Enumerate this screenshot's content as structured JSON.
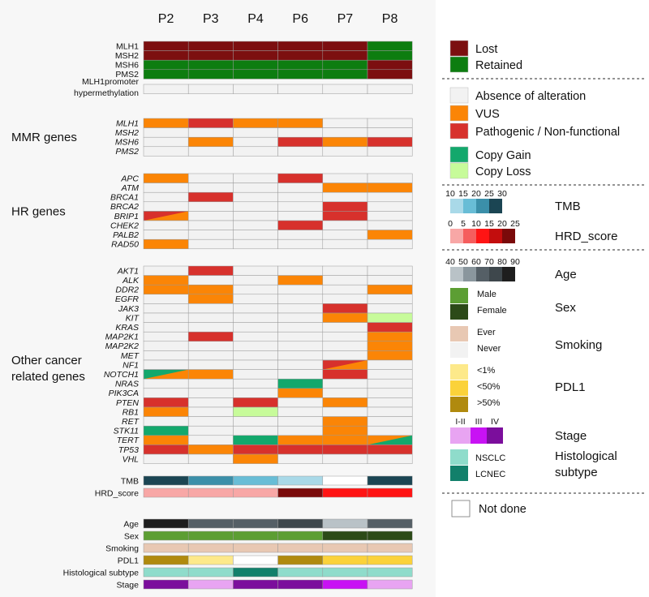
{
  "chart_data": {
    "type": "heatmap",
    "patients": [
      "P2",
      "P3",
      "P4",
      "P6",
      "P7",
      "P8"
    ],
    "sections": [
      {
        "title": "",
        "italic": false,
        "rows": [
          {
            "label": "MLH1",
            "cells": [
              "lost",
              "lost",
              "lost",
              "lost",
              "lost",
              "retained"
            ]
          },
          {
            "label": "MSH2",
            "cells": [
              "lost",
              "lost",
              "lost",
              "lost",
              "lost",
              "retained"
            ]
          },
          {
            "label": "MSH6",
            "cells": [
              "retained",
              "retained",
              "retained",
              "retained",
              "retained",
              "lost"
            ]
          },
          {
            "label": "PMS2",
            "cells": [
              "retained",
              "retained",
              "retained",
              "retained",
              "retained",
              "lost"
            ]
          }
        ]
      },
      {
        "title": "",
        "italic": false,
        "label_lines": [
          "MLH1promoter",
          "hypermethylation"
        ],
        "rows": [
          {
            "label": "",
            "cells": [
              "absence",
              "absence",
              "absence",
              "absence",
              "absence",
              "absence"
            ]
          }
        ]
      },
      {
        "title": "MMR genes",
        "italic": true,
        "rows": [
          {
            "label": "MLH1",
            "cells": [
              "vus",
              "pathogenic",
              "vus",
              "vus",
              "absence",
              "absence"
            ]
          },
          {
            "label": "MSH2",
            "cells": [
              "absence",
              "absence",
              "absence",
              "absence",
              "absence",
              "absence"
            ]
          },
          {
            "label": "MSH6",
            "cells": [
              "absence",
              "vus",
              "absence",
              "pathogenic",
              "vus",
              "pathogenic"
            ]
          },
          {
            "label": "PMS2",
            "cells": [
              "absence",
              "absence",
              "absence",
              "absence",
              "absence",
              "absence"
            ]
          }
        ]
      },
      {
        "title": "HR genes",
        "italic": true,
        "rows": [
          {
            "label": "APC",
            "cells": [
              "vus",
              "absence",
              "absence",
              "pathogenic",
              "absence",
              "absence"
            ]
          },
          {
            "label": "ATM",
            "cells": [
              "absence",
              "absence",
              "absence",
              "absence",
              "vus",
              "vus"
            ]
          },
          {
            "label": "BRCA1",
            "cells": [
              "absence",
              "pathogenic",
              "absence",
              "absence",
              "absence",
              "absence"
            ]
          },
          {
            "label": "BRCA2",
            "cells": [
              "absence",
              "absence",
              "absence",
              "absence",
              "pathogenic",
              "absence"
            ]
          },
          {
            "label": "BRIP1",
            "cells": [
              "pathogenic/vus",
              "absence",
              "absence",
              "absence",
              "pathogenic",
              "absence"
            ]
          },
          {
            "label": "CHEK2",
            "cells": [
              "absence",
              "absence",
              "absence",
              "pathogenic",
              "absence",
              "absence"
            ]
          },
          {
            "label": "PALB2",
            "cells": [
              "absence",
              "absence",
              "absence",
              "absence",
              "absence",
              "vus"
            ]
          },
          {
            "label": "RAD50",
            "cells": [
              "vus",
              "absence",
              "absence",
              "absence",
              "absence",
              "absence"
            ]
          }
        ]
      },
      {
        "title": "Other cancer related genes",
        "title_lines": [
          "Other cancer",
          "related genes"
        ],
        "italic": true,
        "rows": [
          {
            "label": "AKT1",
            "cells": [
              "absence",
              "pathogenic",
              "absence",
              "absence",
              "absence",
              "absence"
            ]
          },
          {
            "label": "ALK",
            "cells": [
              "vus",
              "absence",
              "absence",
              "vus",
              "absence",
              "absence"
            ]
          },
          {
            "label": "DDR2",
            "cells": [
              "vus",
              "vus",
              "absence",
              "absence",
              "absence",
              "vus"
            ]
          },
          {
            "label": "EGFR",
            "cells": [
              "absence",
              "vus",
              "absence",
              "absence",
              "absence",
              "absence"
            ]
          },
          {
            "label": "JAK3",
            "cells": [
              "absence",
              "absence",
              "absence",
              "absence",
              "pathogenic",
              "absence"
            ]
          },
          {
            "label": "KIT",
            "cells": [
              "absence",
              "absence",
              "absence",
              "absence",
              "vus",
              "copy_loss"
            ]
          },
          {
            "label": "KRAS",
            "cells": [
              "absence",
              "absence",
              "absence",
              "absence",
              "absence",
              "pathogenic"
            ]
          },
          {
            "label": "MAP2K1",
            "cells": [
              "absence",
              "pathogenic",
              "absence",
              "absence",
              "absence",
              "vus"
            ]
          },
          {
            "label": "MAP2K2",
            "cells": [
              "absence",
              "absence",
              "absence",
              "absence",
              "absence",
              "vus"
            ]
          },
          {
            "label": "MET",
            "cells": [
              "absence",
              "absence",
              "absence",
              "absence",
              "absence",
              "vus"
            ]
          },
          {
            "label": "NF1",
            "cells": [
              "absence",
              "absence",
              "absence",
              "absence",
              "pathogenic/vus",
              "absence"
            ]
          },
          {
            "label": "NOTCH1",
            "cells": [
              "copy_gain/vus",
              "vus",
              "absence",
              "absence",
              "pathogenic",
              "absence"
            ]
          },
          {
            "label": "NRAS",
            "cells": [
              "absence",
              "absence",
              "absence",
              "copy_gain",
              "absence",
              "absence"
            ]
          },
          {
            "label": "PIK3CA",
            "cells": [
              "absence",
              "absence",
              "absence",
              "vus",
              "absence",
              "absence"
            ]
          },
          {
            "label": "PTEN",
            "cells": [
              "pathogenic",
              "absence",
              "pathogenic",
              "absence",
              "vus",
              "absence"
            ]
          },
          {
            "label": "RB1",
            "cells": [
              "vus",
              "absence",
              "copy_loss",
              "absence",
              "absence",
              "absence"
            ]
          },
          {
            "label": "RET",
            "cells": [
              "absence",
              "absence",
              "absence",
              "absence",
              "vus",
              "absence"
            ]
          },
          {
            "label": "STK11",
            "cells": [
              "copy_gain",
              "absence",
              "absence",
              "absence",
              "vus",
              "absence"
            ]
          },
          {
            "label": "TERT",
            "cells": [
              "vus",
              "absence",
              "copy_gain",
              "vus",
              "vus",
              "vus/copy_gain"
            ]
          },
          {
            "label": "TP53",
            "cells": [
              "pathogenic",
              "vus",
              "pathogenic",
              "pathogenic",
              "pathogenic",
              "pathogenic"
            ]
          },
          {
            "label": "VHL",
            "cells": [
              "absence",
              "absence",
              "vus",
              "absence",
              "absence",
              "absence"
            ]
          }
        ]
      }
    ],
    "annotations": [
      {
        "label": "TMB",
        "colors": [
          "#1b4553",
          "#3b8fa9",
          "#68bdd6",
          "#a9d9e8",
          "not_done",
          "#1b4553"
        ]
      },
      {
        "label": "HRD_score",
        "colors": [
          "#f8a7a6",
          "#f8a7a6",
          "#f8a7a6",
          "#7a0a0a",
          "#ff1414",
          "#ff1414"
        ]
      },
      {
        "label": "Age",
        "colors": [
          "#1e1e1e",
          "#555f66",
          "#555f66",
          "#3e474c",
          "#b9c2c7",
          "#555f66"
        ]
      },
      {
        "label": "Sex",
        "colors": [
          "#5c9e33",
          "#5c9e33",
          "#5c9e33",
          "#5c9e33",
          "#2c4a18",
          "#2c4a18"
        ]
      },
      {
        "label": "Smoking",
        "colors": [
          "#e8c8b3",
          "#e8c8b3",
          "#e8c8b3",
          "#e8c8b3",
          "#e8c8b3",
          "#e8c8b3"
        ]
      },
      {
        "label": "PDL1",
        "colors": [
          "#b08a0e",
          "#fde98a",
          "not_done",
          "#b08a0e",
          "#fbd23a",
          "#fbd23a"
        ]
      },
      {
        "label": "Histological subtype",
        "colors": [
          "#8fdccb",
          "#8fdccb",
          "#12806b",
          "#8fdccb",
          "#8fdccb",
          "#8fdccb"
        ]
      },
      {
        "label": "Stage",
        "colors": [
          "#7b0e9c",
          "#e8a4f2",
          "#7b0e9c",
          "#7b0e9c",
          "#c812f4",
          "#e8a4f2"
        ]
      }
    ],
    "colors": {
      "lost": "#7c0f10",
      "retained": "#0d7d10",
      "absence": "#f2f2f2",
      "vus": "#fb8506",
      "pathogenic": "#d7312c",
      "copy_gain": "#13a86c",
      "copy_loss": "#c7fb9a",
      "not_done": "#ffffff"
    },
    "legend": {
      "categorical": [
        {
          "key": "lost",
          "label": "Lost"
        },
        {
          "key": "retained",
          "label": "Retained"
        },
        {
          "key": "absence",
          "label": "Absence of alteration"
        },
        {
          "key": "vus",
          "label": "VUS"
        },
        {
          "key": "pathogenic",
          "label": "Pathogenic / Non-functional"
        },
        {
          "key": "copy_gain",
          "label": "Copy Gain"
        },
        {
          "key": "copy_loss",
          "label": "Copy Loss"
        }
      ],
      "tmb": {
        "title": "TMB",
        "ticks": [
          "10",
          "15",
          "20",
          "25",
          "30"
        ],
        "colors": [
          "#a9d9e8",
          "#68bdd6",
          "#3b8fa9",
          "#1b4553"
        ]
      },
      "hrd": {
        "title": "HRD_score",
        "ticks": [
          "0",
          "5",
          "10",
          "15",
          "20",
          "25"
        ],
        "colors": [
          "#f8a7a6",
          "#f55d5d",
          "#ff1414",
          "#c30d0d",
          "#7a0a0a"
        ]
      },
      "age": {
        "title": "Age",
        "ticks": [
          "40",
          "50",
          "60",
          "70",
          "80",
          "90"
        ],
        "colors": [
          "#b9c2c7",
          "#8a969d",
          "#555f66",
          "#3e474c",
          "#1e1e1e"
        ]
      },
      "sex": {
        "title": "Sex",
        "items": [
          {
            "label": "Male",
            "color": "#5c9e33"
          },
          {
            "label": "Female",
            "color": "#2c4a18"
          }
        ]
      },
      "smoking": {
        "title": "Smoking",
        "items": [
          {
            "label": "Ever",
            "color": "#e8c8b3"
          },
          {
            "label": "Never",
            "color": "#f2f2f2"
          }
        ]
      },
      "pdl1": {
        "title": "PDL1",
        "items": [
          {
            "label": "<1%",
            "color": "#fde98a"
          },
          {
            "label": "<50%",
            "color": "#fbd23a"
          },
          {
            "label": ">50%",
            "color": "#b08a0e"
          }
        ]
      },
      "stage": {
        "title": "Stage",
        "items": [
          {
            "label": "I-II",
            "color": "#e8a4f2"
          },
          {
            "label": "III",
            "color": "#c812f4"
          },
          {
            "label": "IV",
            "color": "#7b0e9c"
          }
        ]
      },
      "histology": {
        "title_lines": [
          "Histological",
          "subtype"
        ],
        "items": [
          {
            "label": "NSCLC",
            "color": "#8fdccb"
          },
          {
            "label": "LCNEC",
            "color": "#12806b"
          }
        ]
      },
      "not_done": {
        "label": "Not done"
      }
    }
  }
}
